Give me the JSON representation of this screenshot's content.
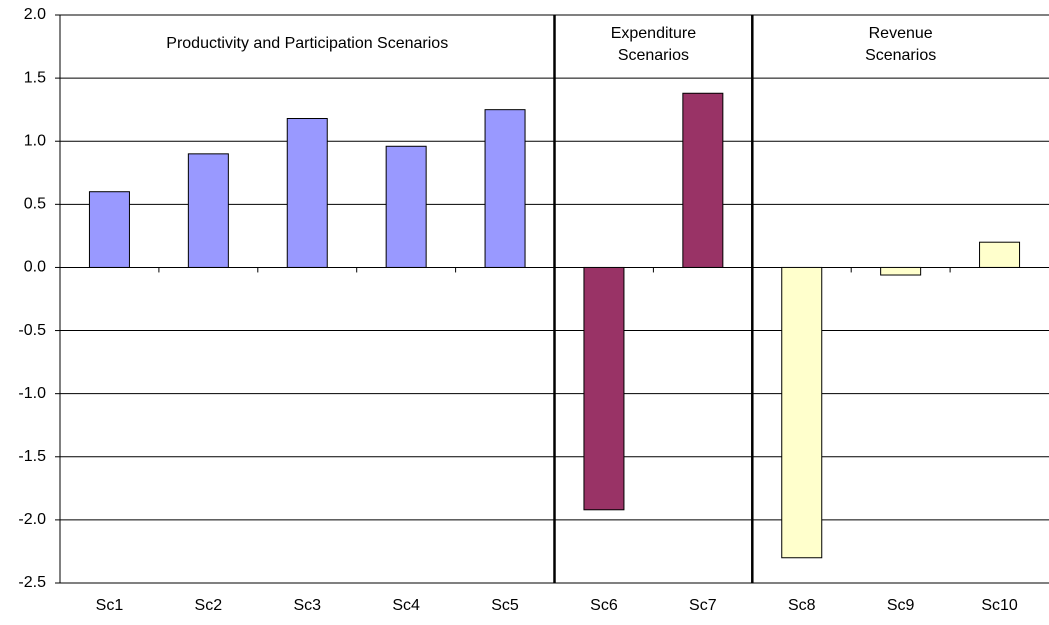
{
  "chart_data": {
    "type": "bar",
    "categories": [
      "Sc1",
      "Sc2",
      "Sc3",
      "Sc4",
      "Sc5",
      "Sc6",
      "Sc7",
      "Sc8",
      "Sc9",
      "Sc10"
    ],
    "values": [
      0.6,
      0.9,
      1.18,
      0.96,
      1.25,
      -1.92,
      1.38,
      -2.3,
      -0.06,
      0.2
    ],
    "colors": [
      "#9999ff",
      "#9999ff",
      "#9999ff",
      "#9999ff",
      "#9999ff",
      "#993366",
      "#993366",
      "#ffffcc",
      "#ffffcc",
      "#ffffcc"
    ],
    "ylim": [
      -2.5,
      2.0
    ],
    "yticks": [
      {
        "value": -2.5,
        "label": "-2.5"
      },
      {
        "value": -2.0,
        "label": "-2.0"
      },
      {
        "value": -1.5,
        "label": "-1.5"
      },
      {
        "value": -1.0,
        "label": "-1.0"
      },
      {
        "value": -0.5,
        "label": "-0.5"
      },
      {
        "value": 0,
        "label": "0.0"
      },
      {
        "value": 0.5,
        "label": "0.5"
      },
      {
        "value": 1.0,
        "label": "1.0"
      },
      {
        "value": 1.5,
        "label": "1.5"
      },
      {
        "value": 2.0,
        "label": "2.0"
      }
    ],
    "grid": true,
    "annotations": [
      {
        "lines": [
          "Productivity and Participation Scenarios"
        ]
      },
      {
        "lines": [
          "Expenditure",
          "Scenarios"
        ]
      },
      {
        "lines": [
          "Revenue",
          "Scenarios"
        ]
      }
    ]
  }
}
